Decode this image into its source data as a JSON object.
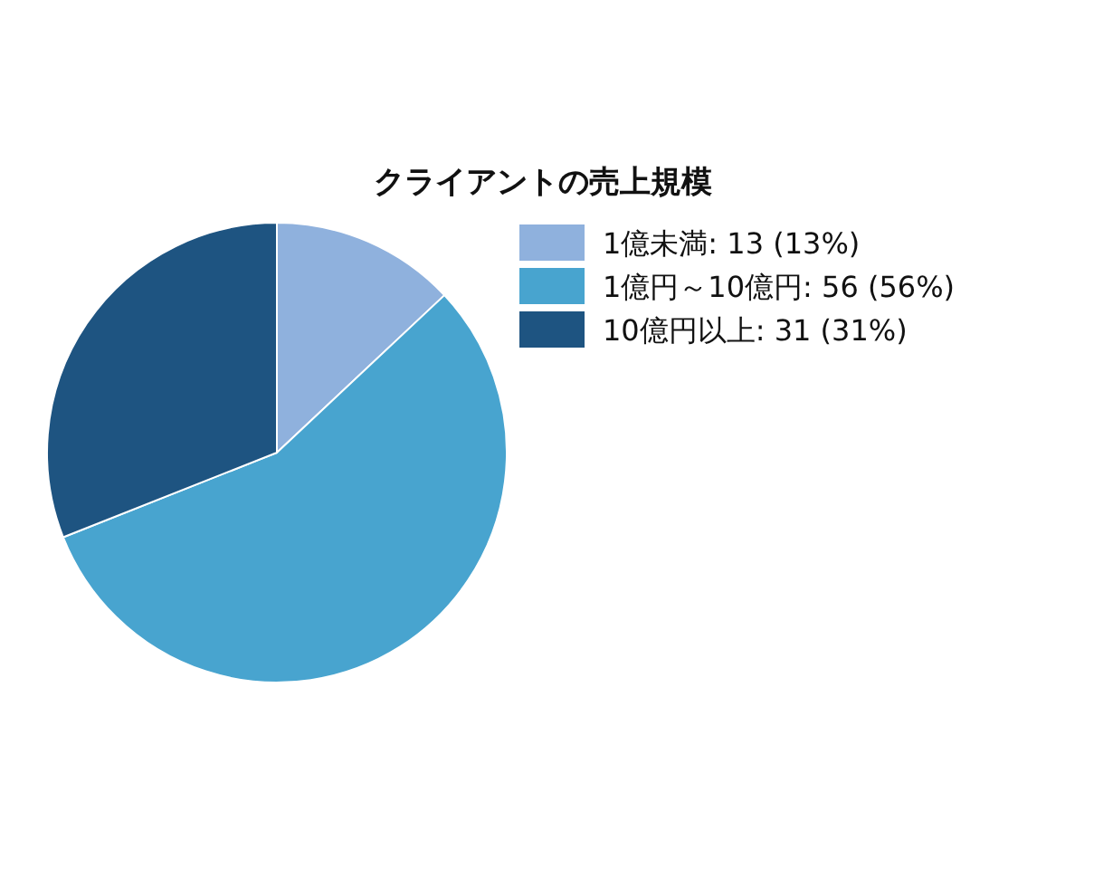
{
  "chart_data": {
    "type": "pie",
    "title": "クライアントの売上規模",
    "categories": [
      "1億未満: 13 (13%)",
      "1億円～10億円: 56 (56%)",
      "10億円以上: 31 (31%)"
    ],
    "values": [
      13,
      56,
      31
    ],
    "colors": [
      "#8fb1dd",
      "#48a4cf",
      "#1e5481"
    ],
    "legend": "right"
  }
}
